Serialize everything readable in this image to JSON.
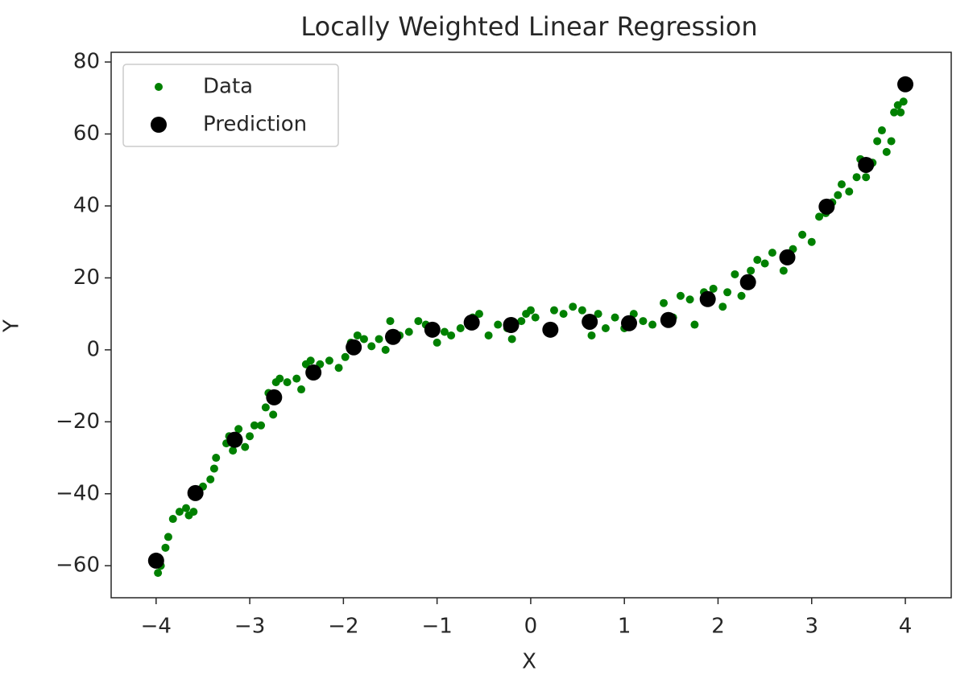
{
  "chart_data": {
    "type": "scatter",
    "title": "Locally Weighted Linear Regression",
    "x_label": "X",
    "y_label": "Y",
    "xlim": [
      -4.48,
      4.49
    ],
    "ylim": [
      -68.9,
      82.7
    ],
    "xticks": [
      {
        "value": -4,
        "label": "−4"
      },
      {
        "value": -3,
        "label": "−3"
      },
      {
        "value": -2,
        "label": "−2"
      },
      {
        "value": -1,
        "label": "−1"
      },
      0,
      1,
      2,
      3,
      4
    ],
    "yticks": [
      {
        "value": -60,
        "label": "−60"
      },
      {
        "value": -40,
        "label": "−40"
      },
      {
        "value": -20,
        "label": "−20"
      },
      0,
      20,
      40,
      60,
      80
    ],
    "legend": "upper left",
    "series": [
      {
        "name": "Data",
        "color": "#008000",
        "size": 5,
        "x": [
          -3.98,
          -3.95,
          -3.9,
          -3.87,
          -3.82,
          -3.75,
          -3.68,
          -3.65,
          -3.6,
          -3.55,
          -3.5,
          -3.42,
          -3.38,
          -3.36,
          -3.25,
          -3.22,
          -3.18,
          -3.12,
          -3.05,
          -3.0,
          -2.95,
          -2.88,
          -2.83,
          -2.8,
          -2.75,
          -2.72,
          -2.68,
          -2.6,
          -2.5,
          -2.45,
          -2.4,
          -2.35,
          -2.25,
          -2.15,
          -2.05,
          -1.98,
          -1.92,
          -1.85,
          -1.78,
          -1.7,
          -1.62,
          -1.55,
          -1.5,
          -1.4,
          -1.3,
          -1.2,
          -1.12,
          -1.0,
          -0.92,
          -0.85,
          -0.75,
          -0.62,
          -0.55,
          -0.45,
          -0.35,
          -0.25,
          -0.2,
          -0.1,
          -0.05,
          0.0,
          0.05,
          0.25,
          0.35,
          0.45,
          0.55,
          0.65,
          0.72,
          0.8,
          0.9,
          1.0,
          1.1,
          1.2,
          1.3,
          1.42,
          1.52,
          1.6,
          1.7,
          1.75,
          1.85,
          1.95,
          2.05,
          2.1,
          2.18,
          2.25,
          2.35,
          2.42,
          2.5,
          2.58,
          2.7,
          2.8,
          2.9,
          3.0,
          3.08,
          3.15,
          3.22,
          3.28,
          3.32,
          3.4,
          3.48,
          3.52,
          3.58,
          3.65,
          3.7,
          3.75,
          3.8,
          3.85,
          3.88,
          3.92,
          3.95,
          3.98
        ],
        "values": [
          -62,
          -60,
          -55,
          -52,
          -47,
          -45,
          -44,
          -46,
          -45,
          -40,
          -38,
          -36,
          -33,
          -30,
          -26,
          -24,
          -28,
          -22,
          -27,
          -24,
          -21,
          -21,
          -16,
          -12,
          -18,
          -9,
          -8,
          -9,
          -8,
          -11,
          -4,
          -3,
          -4,
          -3,
          -5,
          -2,
          2,
          4,
          3,
          1,
          3,
          0,
          8,
          4,
          5,
          8,
          7,
          2,
          5,
          4,
          6,
          9,
          10,
          4,
          7,
          6,
          3,
          8,
          10,
          11,
          9,
          11,
          10,
          12,
          11,
          4,
          10,
          6,
          9,
          6,
          10,
          8,
          7,
          13,
          9,
          15,
          14,
          7,
          16,
          17,
          12,
          16,
          21,
          15,
          22,
          25,
          24,
          27,
          22,
          28,
          32,
          30,
          37,
          38,
          41,
          43,
          46,
          44,
          48,
          53,
          48,
          52,
          58,
          61,
          55,
          58,
          66,
          68,
          66,
          69
        ]
      },
      {
        "name": "Prediction",
        "color": "#000000",
        "size": 10,
        "x": [
          -4.0,
          -3.58,
          -3.16,
          -2.74,
          -2.32,
          -1.89,
          -1.47,
          -1.05,
          -0.63,
          -0.21,
          0.21,
          0.63,
          1.05,
          1.47,
          1.89,
          2.32,
          2.74,
          3.16,
          3.58,
          4.0
        ],
        "values": [
          -58.6,
          -39.8,
          -25.0,
          -13.2,
          -6.3,
          0.7,
          3.6,
          5.6,
          7.6,
          6.9,
          5.6,
          7.8,
          7.4,
          8.3,
          14.1,
          18.8,
          25.7,
          39.8,
          51.4,
          73.8
        ]
      }
    ]
  }
}
